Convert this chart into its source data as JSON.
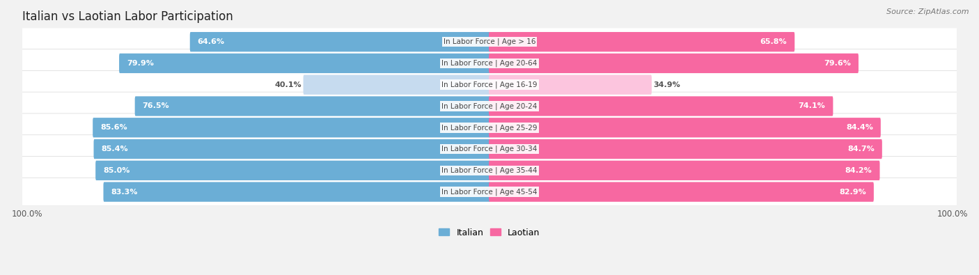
{
  "title": "Italian vs Laotian Labor Participation",
  "source": "Source: ZipAtlas.com",
  "categories": [
    "In Labor Force | Age > 16",
    "In Labor Force | Age 20-64",
    "In Labor Force | Age 16-19",
    "In Labor Force | Age 20-24",
    "In Labor Force | Age 25-29",
    "In Labor Force | Age 30-34",
    "In Labor Force | Age 35-44",
    "In Labor Force | Age 45-54"
  ],
  "italian_values": [
    64.6,
    79.9,
    40.1,
    76.5,
    85.6,
    85.4,
    85.0,
    83.3
  ],
  "laotian_values": [
    65.8,
    79.6,
    34.9,
    74.1,
    84.4,
    84.7,
    84.2,
    82.9
  ],
  "italian_color": "#6baed6",
  "laotian_color": "#f768a1",
  "italian_light_color": "#c6dbef",
  "laotian_light_color": "#fcc5de",
  "bg_color": "#f2f2f2",
  "row_bg_color": "#ffffff",
  "row_border_color": "#d8d8d8",
  "max_value": 100.0,
  "label_fontsize": 8.0,
  "cat_fontsize": 7.5,
  "title_fontsize": 12,
  "legend_fontsize": 9,
  "source_fontsize": 8
}
